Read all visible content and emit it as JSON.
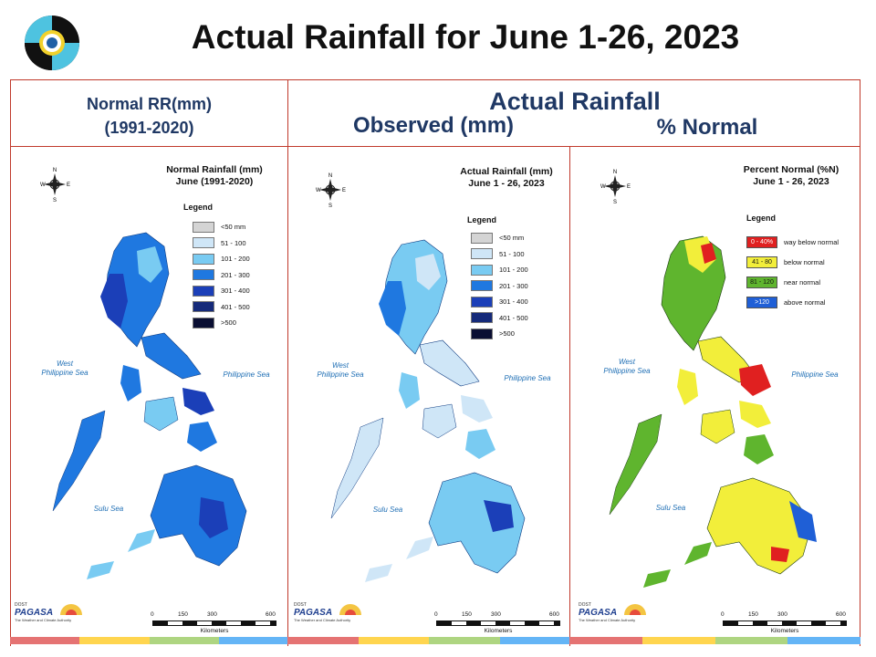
{
  "slide": {
    "title": "Actual Rainfall for June 1-26, 2023"
  },
  "headers": {
    "normal_line1": "Normal RR(mm)",
    "normal_line2": "(1991-2020)",
    "actual": "Actual Rainfall",
    "observed": "Observed (mm)",
    "percent": "% Normal"
  },
  "panels": {
    "normal": {
      "title_line1": "Normal Rainfall (mm)",
      "title_line2": "June (1991-2020)"
    },
    "actual": {
      "title_line1": "Actual Rainfall (mm)",
      "title_line2": "June 1 - 26, 2023"
    },
    "percent": {
      "title_line1": "Percent Normal (%N)",
      "title_line2": "June 1 - 26, 2023"
    }
  },
  "legend_title": "Legend",
  "rr_legend": [
    {
      "label": "<50 mm",
      "color": "#d4d4d4"
    },
    {
      "label": "51 - 100",
      "color": "#cfe6f7"
    },
    {
      "label": "101 - 200",
      "color": "#79cbf2"
    },
    {
      "label": "201 - 300",
      "color": "#1f78e0"
    },
    {
      "label": "301 - 400",
      "color": "#1b3fb8"
    },
    {
      "label": "401 - 500",
      "color": "#152a7a"
    },
    {
      "label": ">500",
      "color": "#0a0f33"
    }
  ],
  "pct_legend": [
    {
      "range": "0 - 40%",
      "label": "way below normal",
      "color": "#e02020"
    },
    {
      "range": "41 - 80",
      "label": "below normal",
      "color": "#f2ee3a"
    },
    {
      "range": "81 - 120",
      "label": "near normal",
      "color": "#5fb52e"
    },
    {
      "range": ">120",
      "label": "above normal",
      "color": "#1f5fd6"
    }
  ],
  "seas": {
    "west_line1": "West",
    "west_line2": "Philippine Sea",
    "philippine": "Philippine Sea",
    "sulu": "Sulu Sea"
  },
  "compass": {
    "n": "N",
    "s": "S",
    "e": "E",
    "w": "W"
  },
  "scale": {
    "t0": "0",
    "t1": "150",
    "t2": "300",
    "t3": "600",
    "unit": "Kilometers"
  },
  "pagasa": {
    "top": "DOST",
    "name": "PAGASA",
    "tagline": "The Weather and Climate Authority"
  },
  "strip_colors": [
    "#e57373",
    "#ffd54f",
    "#aed581",
    "#64b5f6"
  ]
}
